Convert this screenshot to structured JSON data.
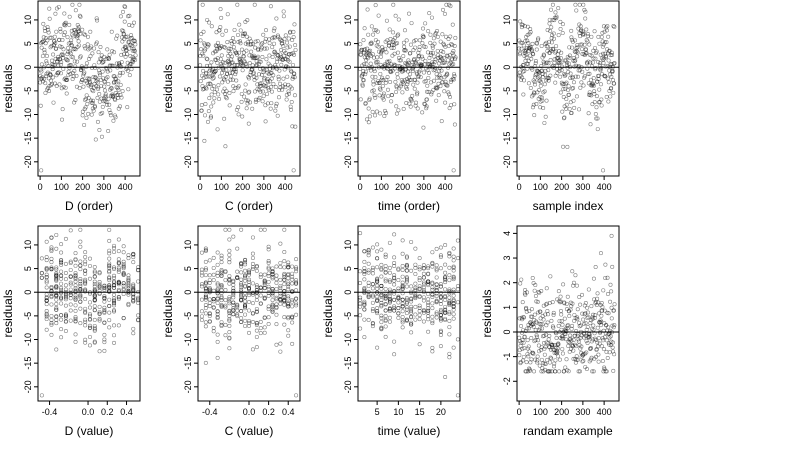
{
  "chart_data": [
    {
      "type": "scatter",
      "xlabel": "D (order)",
      "ylabel": "residuals",
      "xlim": [
        -10,
        470
      ],
      "ylim": [
        -23,
        14
      ],
      "xticks": [
        0,
        100,
        200,
        300,
        400
      ],
      "yticks": [
        -20,
        -15,
        -10,
        -5,
        0,
        5,
        10
      ],
      "hline": 0,
      "n_points": 450,
      "pattern": "order-D",
      "seed": 11
    },
    {
      "type": "scatter",
      "xlabel": "C (order)",
      "ylabel": "residuals",
      "xlim": [
        -10,
        470
      ],
      "ylim": [
        -23,
        14
      ],
      "xticks": [
        0,
        100,
        200,
        300,
        400
      ],
      "yticks": [
        -20,
        -15,
        -10,
        -5,
        0,
        5,
        10
      ],
      "hline": 0,
      "n_points": 450,
      "pattern": "uniform",
      "seed": 22
    },
    {
      "type": "scatter",
      "xlabel": "time (order)",
      "ylabel": "residuals",
      "xlim": [
        -10,
        470
      ],
      "ylim": [
        -23,
        14
      ],
      "xticks": [
        0,
        100,
        200,
        300,
        400
      ],
      "yticks": [
        -20,
        -15,
        -10,
        -5,
        0,
        5,
        10
      ],
      "hline": 0,
      "n_points": 450,
      "pattern": "uniform",
      "seed": 33
    },
    {
      "type": "scatter",
      "xlabel": "sample index",
      "ylabel": "residuals",
      "xlim": [
        -10,
        470
      ],
      "ylim": [
        -23,
        14
      ],
      "xticks": [
        0,
        100,
        200,
        300,
        400
      ],
      "yticks": [
        -20,
        -15,
        -10,
        -5,
        0,
        5,
        10
      ],
      "hline": 0,
      "n_points": 450,
      "pattern": "blocks",
      "seed": 44
    },
    {
      "type": "scatter",
      "xlabel": "D (value)",
      "ylabel": "residuals",
      "xlim": [
        -0.52,
        0.54
      ],
      "ylim": [
        -23,
        14
      ],
      "xticks": [
        -0.4,
        0.0,
        0.2,
        0.4
      ],
      "xtick_labels": [
        "-0.4",
        "0.0",
        "0.2",
        "0.4"
      ],
      "yticks": [
        -20,
        -15,
        -10,
        -5,
        0,
        5,
        10
      ],
      "hline": 0,
      "n_points": 450,
      "pattern": "value-D",
      "seed": 55
    },
    {
      "type": "scatter",
      "xlabel": "C (value)",
      "ylabel": "residuals",
      "xlim": [
        -0.52,
        0.52
      ],
      "ylim": [
        -23,
        14
      ],
      "xticks": [
        -0.4,
        0.0,
        0.2,
        0.4
      ],
      "xtick_labels": [
        "-0.4",
        "0.0",
        "0.2",
        "0.4"
      ],
      "yticks": [
        -20,
        -15,
        -10,
        -5,
        0,
        5,
        10
      ],
      "hline": 0,
      "n_points": 450,
      "pattern": "value-C",
      "seed": 66
    },
    {
      "type": "scatter",
      "xlabel": "time (value)",
      "ylabel": "residuals",
      "xlim": [
        0.5,
        24.5
      ],
      "ylim": [
        -23,
        14
      ],
      "xticks": [
        5,
        10,
        15,
        20
      ],
      "yticks": [
        -20,
        -15,
        -10,
        -5,
        0,
        5,
        10
      ],
      "hline": 0,
      "n_points": 450,
      "pattern": "value-time",
      "seed": 77
    },
    {
      "type": "scatter",
      "xlabel": "randam example",
      "ylabel": "residuals",
      "xlim": [
        -10,
        470
      ],
      "ylim": [
        -2.8,
        4.3
      ],
      "xticks": [
        0,
        100,
        200,
        300,
        400
      ],
      "yticks": [
        -2,
        -1,
        0,
        1,
        2,
        3,
        4
      ],
      "hline": 0,
      "n_points": 450,
      "pattern": "random",
      "seed": 88
    }
  ]
}
